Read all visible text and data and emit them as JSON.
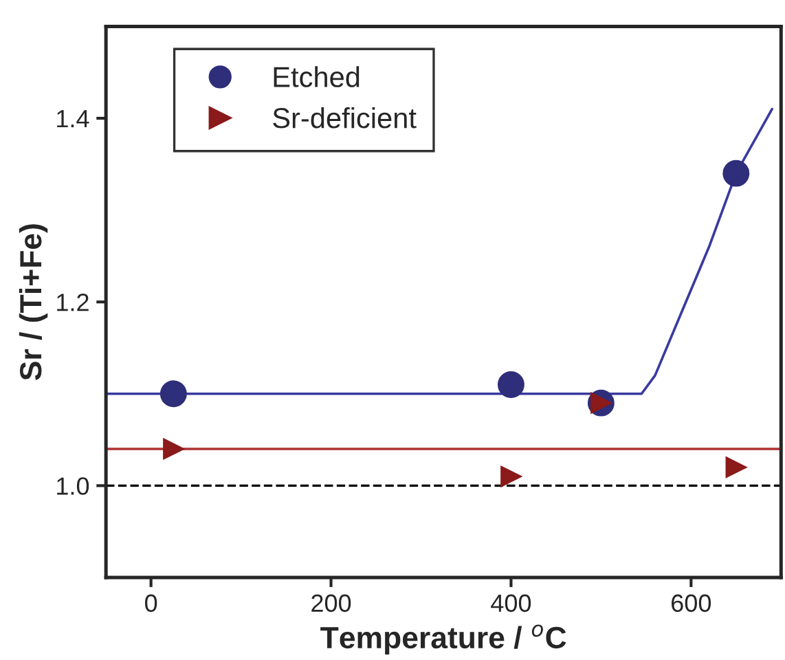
{
  "chart_data": {
    "type": "scatter",
    "xlabel": "Temperature / $^{o}$C",
    "ylabel": "Sr / (Ti+Fe)",
    "xlim": [
      -50,
      700
    ],
    "xticks": [
      0,
      200,
      400,
      600
    ],
    "ylim": [
      0.9,
      1.5
    ],
    "yticks": [
      {
        "value": 1.0,
        "label": "1.0"
      },
      1.2,
      1.4
    ],
    "grid": false,
    "legend": "top left",
    "series": [
      {
        "name": "Etched",
        "color": "#2e2e7a",
        "marker": "circle",
        "x": [
          25,
          400,
          500,
          650
        ],
        "values": [
          1.1,
          1.11,
          1.09,
          1.34
        ]
      },
      {
        "name": "Sr-deficient",
        "color": "#8b1a1a",
        "marker": "triangle",
        "x": [
          25,
          400,
          500,
          650
        ],
        "values": [
          1.04,
          1.01,
          1.09,
          1.02
        ]
      },
      {
        "type": "line",
        "color": "#3a3aa0",
        "marker": "none",
        "x": [
          -50,
          545,
          560,
          590,
          620,
          650,
          690
        ],
        "values": [
          1.1,
          1.1,
          1.12,
          1.19,
          1.26,
          1.34,
          1.41
        ]
      },
      {
        "type": "line",
        "color": "#b03030",
        "marker": "none",
        "x": [
          -50,
          700
        ],
        "values": [
          1.04,
          1.04
        ]
      }
    ],
    "ref_lines": [
      {
        "axis": "y",
        "value": 1.0,
        "color": "#000000",
        "line_style": "dashed"
      }
    ]
  }
}
